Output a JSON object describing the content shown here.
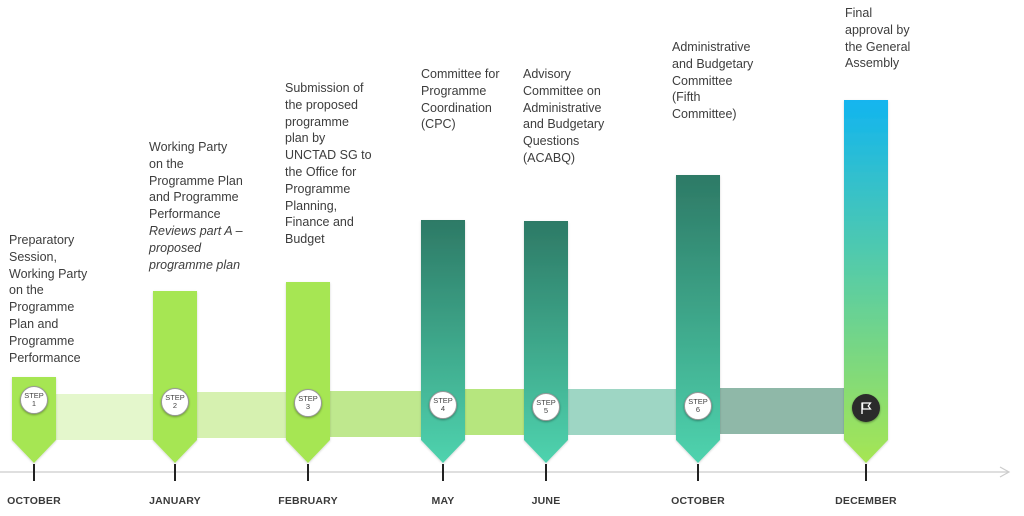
{
  "steps": [
    {
      "id": "step-1",
      "month": "OCTOBER",
      "step_word": "STEP",
      "step_number": "1",
      "description": "Preparatory\nSession,\nWorking Party\non the\nProgramme\nPlan and\nProgramme\nPerformance",
      "description_italic": "",
      "color_top": "#a6e653",
      "color_bottom": "#a6e653"
    },
    {
      "id": "step-2",
      "month": "JANUARY",
      "step_word": "STEP",
      "step_number": "2",
      "description": "Working Party\non the\nProgramme Plan\nand Programme\nPerformance",
      "description_italic": "Reviews part A –\nproposed\nprogramme plan",
      "color_top": "#a6e653",
      "color_bottom": "#a6e653"
    },
    {
      "id": "step-3",
      "month": "FEBRUARY",
      "step_word": "STEP",
      "step_number": "3",
      "description": "Submission of\nthe proposed\nprogramme\nplan by\nUNCTAD SG to\nthe Office for\nProgramme\nPlanning,\nFinance and\nBudget",
      "description_italic": "",
      "color_top": "#a6e653",
      "color_bottom": "#a6e653"
    },
    {
      "id": "step-4",
      "month": "MAY",
      "step_word": "STEP",
      "step_number": "4",
      "description": "Committee for\nProgramme\nCoordination\n(CPC)",
      "description_italic": "",
      "color_top": "#2d7a66",
      "color_bottom": "#4fd3ae"
    },
    {
      "id": "step-5",
      "month": "JUNE",
      "step_word": "STEP",
      "step_number": "5",
      "description": "Advisory\nCommittee on\nAdministrative\nand Budgetary\nQuestions\n(ACABQ)",
      "description_italic": "",
      "color_top": "#2d7a66",
      "color_bottom": "#4fd3ae"
    },
    {
      "id": "step-6",
      "month": "OCTOBER",
      "step_word": "STEP",
      "step_number": "6",
      "description": "Administrative\nand Budgetary\nCommittee\n(Fifth\nCommittee)",
      "description_italic": "",
      "color_top": "#2d7a66",
      "color_bottom": "#4fd3ae"
    },
    {
      "id": "step-final",
      "month": "DECEMBER",
      "step_word": "",
      "step_number": "",
      "description": "Final\napproval by\nthe General\nAssembly",
      "description_italic": "",
      "color_top": "#12b5ef",
      "color_bottom": "#a6e653",
      "icon": "flag-icon"
    }
  ],
  "connector_colors": [
    "#e4f7cc",
    "#d6f1b0",
    "#bfe88e",
    "#b6e67e",
    "#9ed6c4",
    "#8fb8a8"
  ],
  "axis_color": "#cccccc"
}
